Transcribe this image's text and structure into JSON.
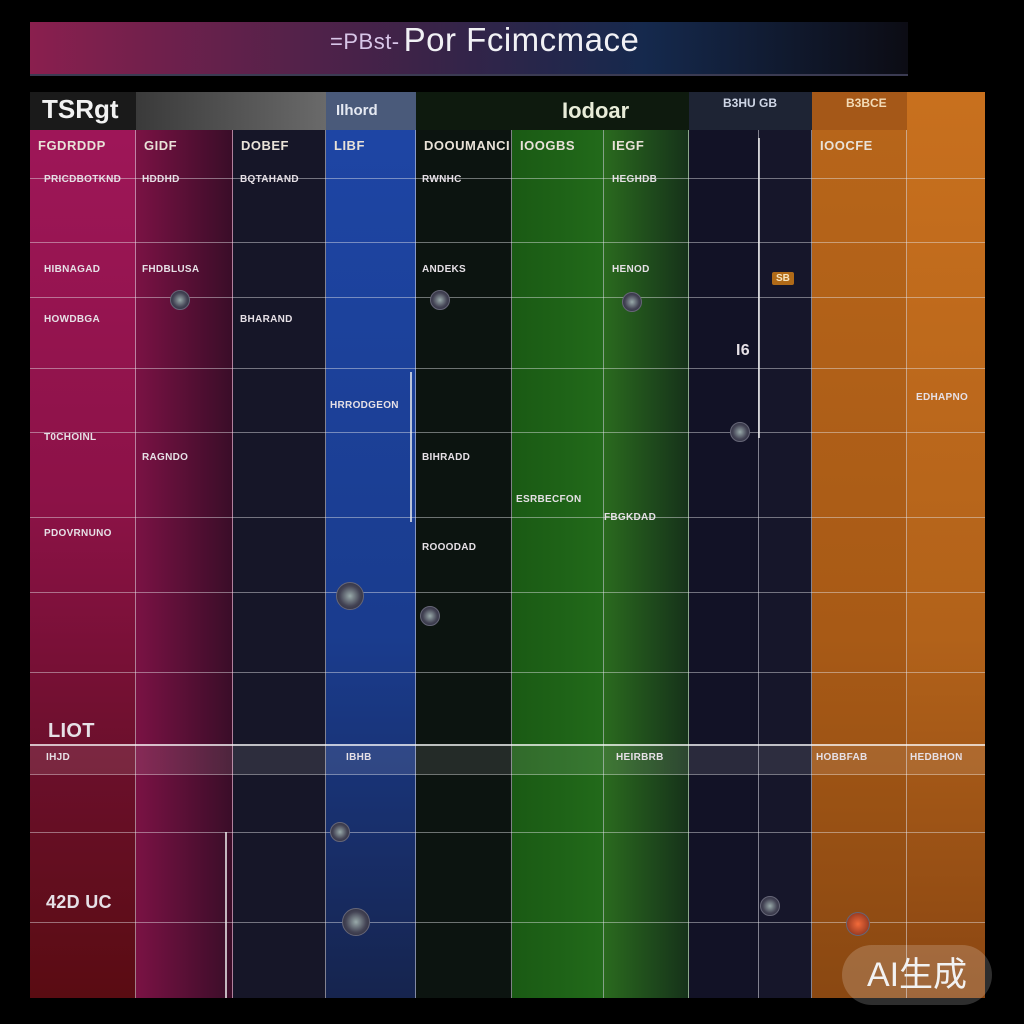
{
  "header": {
    "prefix": "=PBst-",
    "title": "Por Fcimcmace"
  },
  "strip": {
    "left_label": "TSRgt",
    "tab_label": "Ilhord",
    "center_label": "Iodoar",
    "right_a": "B3HU  GB",
    "right_b": "B3BCE"
  },
  "columns": [
    {
      "label": "FGDRDDP",
      "color": "#8a1650"
    },
    {
      "label": "GIDF",
      "color": "#5e1438"
    },
    {
      "label": "DOBEF",
      "color": "#16162a"
    },
    {
      "label": "LIBF",
      "color": "#1d3a7e"
    },
    {
      "label": "DOOUMANCI",
      "color": "#0d1a14"
    },
    {
      "label": "IOOGBS",
      "color": "#1f5a18"
    },
    {
      "label": "IEGF",
      "color": "#2c5a1c"
    },
    {
      "label": "",
      "color": "#141428"
    },
    {
      "label": "",
      "color": "#18182a"
    },
    {
      "label": "IOOCFE",
      "color": "#b26218"
    },
    {
      "label": "",
      "color": "#c06a1e"
    }
  ],
  "cells": {
    "r1": [
      "PRICDBOTKND",
      "HDDHD",
      "BQTAHAND",
      "RWNHC",
      "HEGHDB"
    ],
    "r2": [
      "HIBNAGAD",
      "FHDBLUSA",
      "ANDEKS",
      "HENOD"
    ],
    "r3": [
      "HOWDBGA",
      "BHARAND",
      "HRRODGEON",
      "EDHAPNO"
    ],
    "r4": [
      "T0CHOINL",
      "RAGNDO",
      "BIHRADD",
      "I6",
      "SB"
    ],
    "r5": [
      "PDOVRNUNO",
      "ROOODAD",
      "FBGKDAD",
      "ESRBECFON"
    ],
    "big_left": "LIOT",
    "big_left_2": "42D  UC",
    "band": [
      "IHJD",
      "IBHB",
      "HEIRBRB",
      "HOBBFAB",
      "HEDBHON"
    ]
  },
  "watermark": "AI生成"
}
